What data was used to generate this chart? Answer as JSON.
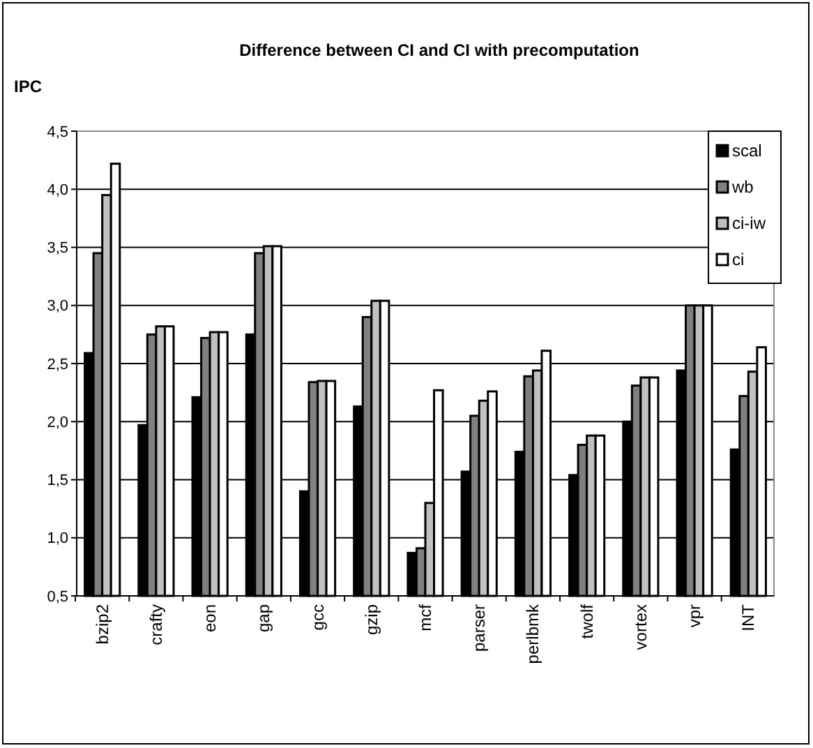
{
  "chart_data": {
    "type": "bar",
    "title": "Difference between CI and CI with precomputation",
    "ylabel": "IPC",
    "categories": [
      "bzip2",
      "crafty",
      "eon",
      "gap",
      "gcc",
      "gzip",
      "mcf",
      "parser",
      "perlbmk",
      "twolf",
      "vortex",
      "vpr",
      "INT"
    ],
    "series": [
      {
        "name": "scal",
        "color": "#000000",
        "values": [
          2.59,
          1.97,
          2.21,
          2.75,
          1.4,
          2.13,
          0.87,
          1.57,
          1.74,
          1.54,
          2.0,
          2.44,
          1.76
        ]
      },
      {
        "name": "wb",
        "color": "#808080",
        "values": [
          3.45,
          2.75,
          2.72,
          3.45,
          2.34,
          2.9,
          0.91,
          2.05,
          2.39,
          1.8,
          2.31,
          3.0,
          2.22
        ]
      },
      {
        "name": "ci-iw",
        "color": "#c0c0c0",
        "values": [
          3.95,
          2.82,
          2.77,
          3.51,
          2.35,
          3.04,
          1.3,
          2.18,
          2.44,
          1.88,
          2.38,
          3.0,
          2.43
        ]
      },
      {
        "name": "ci",
        "color": "#ffffff",
        "values": [
          4.22,
          2.82,
          2.77,
          3.51,
          2.35,
          3.04,
          2.27,
          2.26,
          2.61,
          1.88,
          2.38,
          3.0,
          2.64
        ]
      }
    ],
    "ylim": [
      0.5,
      4.5
    ],
    "yticks": [
      {
        "value": 0.5,
        "label": "0,5"
      },
      {
        "value": 1.0,
        "label": "1,0"
      },
      {
        "value": 1.5,
        "label": "1,5"
      },
      {
        "value": 2.0,
        "label": "2,0"
      },
      {
        "value": 2.5,
        "label": "2,5"
      },
      {
        "value": 3.0,
        "label": "3,0"
      },
      {
        "value": 3.5,
        "label": "3,5"
      },
      {
        "value": 4.0,
        "label": "4,0"
      },
      {
        "value": 4.5,
        "label": "4,5"
      }
    ],
    "grid": "y",
    "legend": "top right"
  }
}
